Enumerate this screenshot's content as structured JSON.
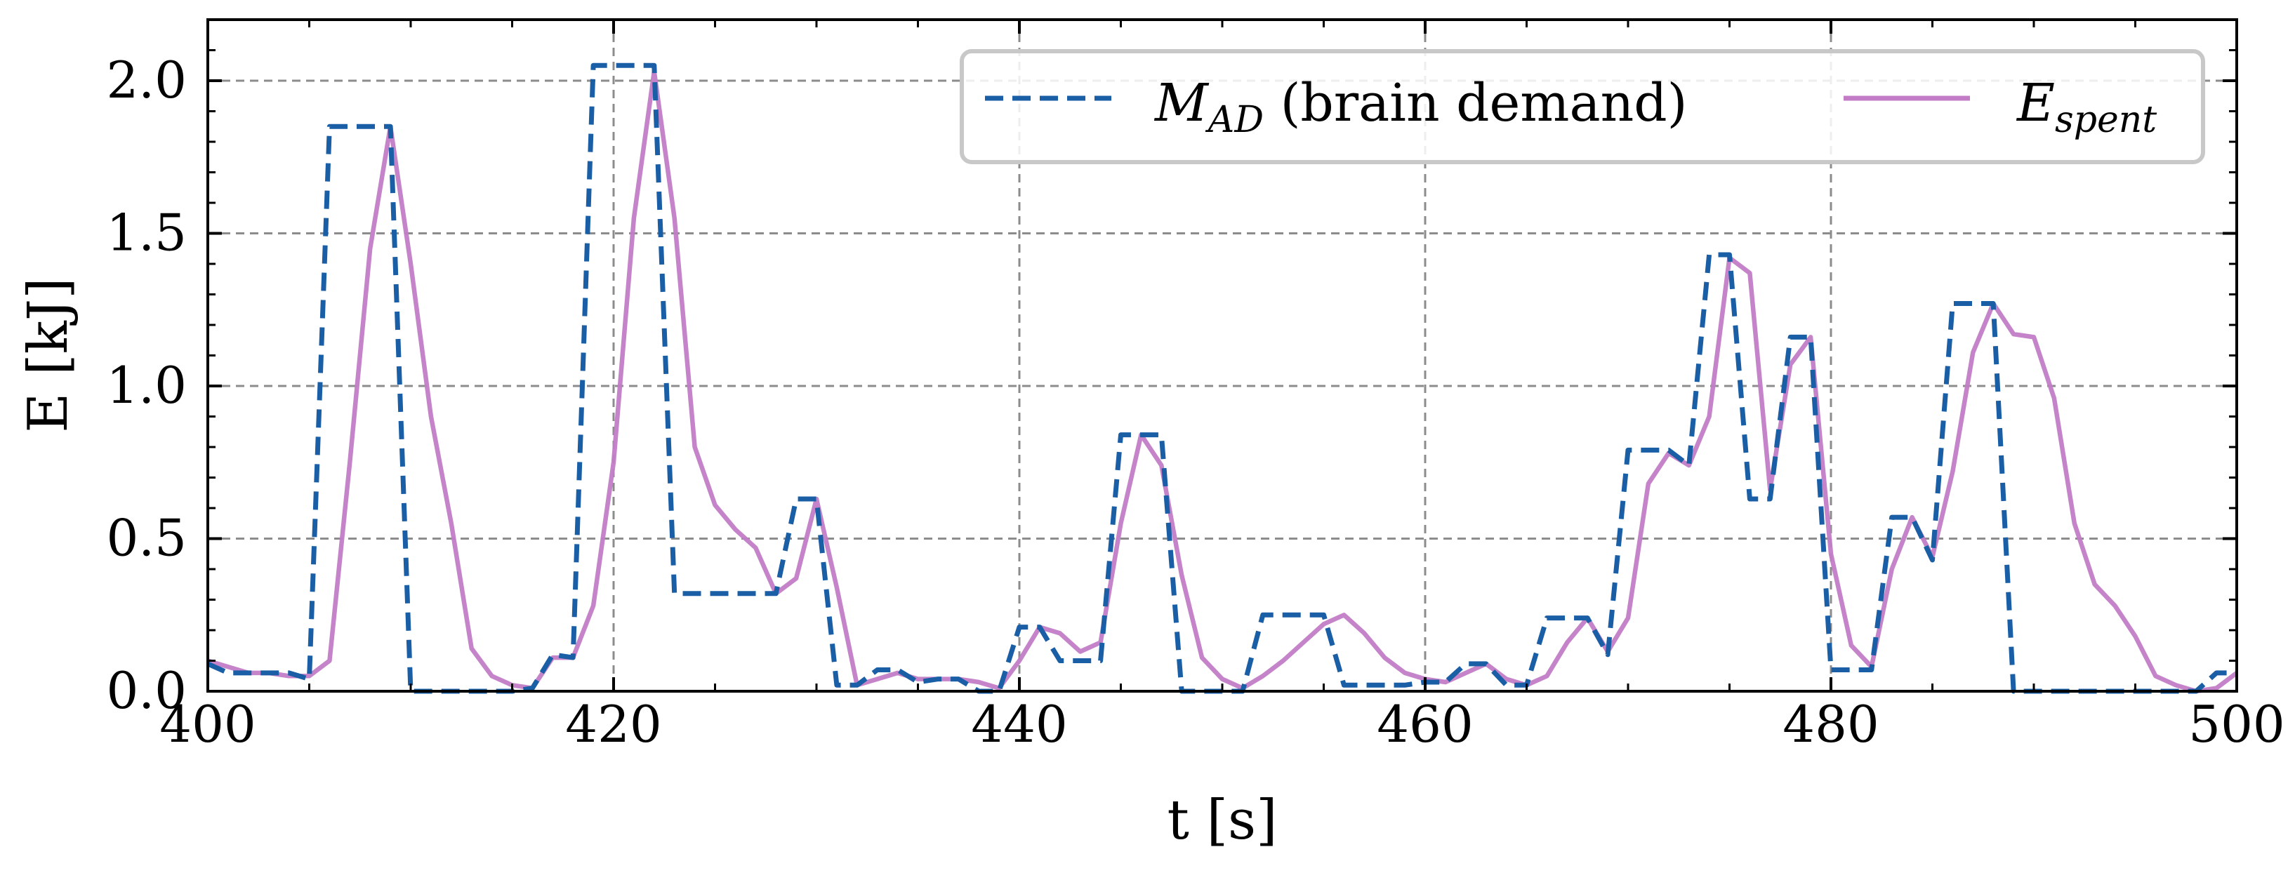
{
  "chart_data": {
    "type": "line",
    "xlabel": "t [s]",
    "ylabel": "E [kJ]",
    "xlim": [
      400,
      500
    ],
    "ylim": [
      0,
      2.2
    ],
    "xticks": [
      400,
      420,
      440,
      460,
      480,
      500
    ],
    "xtick_labels": [
      "400",
      "420",
      "440",
      "460",
      "480",
      "500"
    ],
    "yticks": [
      0.0,
      0.5,
      1.0,
      1.5,
      2.0
    ],
    "ytick_labels": [
      "0.0",
      "0.5",
      "1.0",
      "1.5",
      "2.0"
    ],
    "grid": true,
    "legend_position": "top-right",
    "legend": {
      "items": [
        {
          "math_main": "M",
          "math_sub": "AD",
          "suffix": "(brain demand)"
        },
        {
          "math_main": "E",
          "math_sub": "spent",
          "suffix": ""
        }
      ]
    },
    "series": [
      {
        "name": "M_AD (brain demand)",
        "color": "#1a5ea6",
        "style": "dashed",
        "x": [
          400,
          401,
          402,
          403,
          404,
          405,
          406,
          407,
          408,
          409,
          410,
          411,
          412,
          413,
          414,
          415,
          416,
          417,
          418,
          419,
          420,
          421,
          422,
          423,
          424,
          425,
          426,
          427,
          428,
          429,
          430,
          431,
          432,
          433,
          434,
          435,
          436,
          437,
          438,
          439,
          440,
          441,
          442,
          443,
          444,
          445,
          446,
          447,
          448,
          449,
          450,
          451,
          452,
          453,
          454,
          455,
          456,
          457,
          458,
          459,
          460,
          461,
          462,
          463,
          464,
          465,
          466,
          467,
          468,
          469,
          470,
          471,
          472,
          473,
          474,
          475,
          476,
          477,
          478,
          479,
          480,
          481,
          482,
          483,
          484,
          485,
          486,
          487,
          488,
          489,
          490,
          491,
          492,
          493,
          494,
          495,
          496,
          497,
          498,
          499,
          500
        ],
        "y": [
          0.09,
          0.06,
          0.06,
          0.06,
          0.06,
          0.04,
          1.85,
          1.85,
          1.85,
          1.85,
          0.0,
          0.0,
          0.0,
          0.0,
          0.0,
          0.0,
          0.01,
          0.12,
          0.11,
          2.05,
          2.05,
          2.05,
          2.05,
          0.32,
          0.32,
          0.32,
          0.32,
          0.32,
          0.32,
          0.63,
          0.63,
          0.02,
          0.02,
          0.07,
          0.07,
          0.03,
          0.04,
          0.04,
          0.0,
          0.0,
          0.21,
          0.21,
          0.1,
          0.1,
          0.1,
          0.84,
          0.84,
          0.84,
          0.0,
          0.0,
          0.0,
          0.0,
          0.25,
          0.25,
          0.25,
          0.25,
          0.02,
          0.02,
          0.02,
          0.02,
          0.03,
          0.03,
          0.09,
          0.09,
          0.02,
          0.02,
          0.24,
          0.24,
          0.24,
          0.12,
          0.79,
          0.79,
          0.79,
          0.74,
          1.43,
          1.43,
          0.63,
          0.63,
          1.16,
          1.16,
          0.07,
          0.07,
          0.07,
          0.57,
          0.57,
          0.43,
          1.27,
          1.27,
          1.27,
          0.0,
          0.0,
          0.0,
          0.0,
          0.0,
          0.0,
          0.0,
          0.0,
          0.0,
          0.0,
          0.06,
          0.06
        ]
      },
      {
        "name": "E_spent",
        "color": "#c27dc6",
        "style": "solid",
        "x": [
          400,
          401,
          402,
          403,
          404,
          405,
          406,
          407,
          408,
          409,
          410,
          411,
          412,
          413,
          414,
          415,
          416,
          417,
          418,
          419,
          420,
          421,
          422,
          423,
          424,
          425,
          426,
          427,
          428,
          429,
          430,
          431,
          432,
          433,
          434,
          435,
          436,
          437,
          438,
          439,
          440,
          441,
          442,
          443,
          444,
          445,
          446,
          447,
          448,
          449,
          450,
          451,
          452,
          453,
          454,
          455,
          456,
          457,
          458,
          459,
          460,
          461,
          462,
          463,
          464,
          465,
          466,
          467,
          468,
          469,
          470,
          471,
          472,
          473,
          474,
          475,
          476,
          477,
          478,
          479,
          480,
          481,
          482,
          483,
          484,
          485,
          486,
          487,
          488,
          489,
          490,
          491,
          492,
          493,
          494,
          495,
          496,
          497,
          498,
          499,
          500
        ],
        "y": [
          0.1,
          0.08,
          0.06,
          0.06,
          0.05,
          0.05,
          0.1,
          0.75,
          1.45,
          1.85,
          1.4,
          0.9,
          0.55,
          0.14,
          0.05,
          0.02,
          0.01,
          0.11,
          0.11,
          0.28,
          0.75,
          1.55,
          2.03,
          1.55,
          0.8,
          0.61,
          0.53,
          0.47,
          0.32,
          0.37,
          0.63,
          0.34,
          0.02,
          0.04,
          0.06,
          0.04,
          0.04,
          0.04,
          0.03,
          0.01,
          0.1,
          0.21,
          0.19,
          0.13,
          0.16,
          0.55,
          0.84,
          0.74,
          0.38,
          0.11,
          0.04,
          0.01,
          0.05,
          0.1,
          0.16,
          0.22,
          0.25,
          0.19,
          0.11,
          0.06,
          0.04,
          0.03,
          0.06,
          0.09,
          0.04,
          0.02,
          0.05,
          0.16,
          0.24,
          0.13,
          0.24,
          0.68,
          0.78,
          0.74,
          0.9,
          1.42,
          1.37,
          0.66,
          1.07,
          1.16,
          0.45,
          0.15,
          0.08,
          0.4,
          0.57,
          0.44,
          0.72,
          1.11,
          1.27,
          1.17,
          1.16,
          0.96,
          0.55,
          0.35,
          0.28,
          0.18,
          0.05,
          0.02,
          0.0,
          0.01,
          0.06
        ]
      }
    ]
  }
}
